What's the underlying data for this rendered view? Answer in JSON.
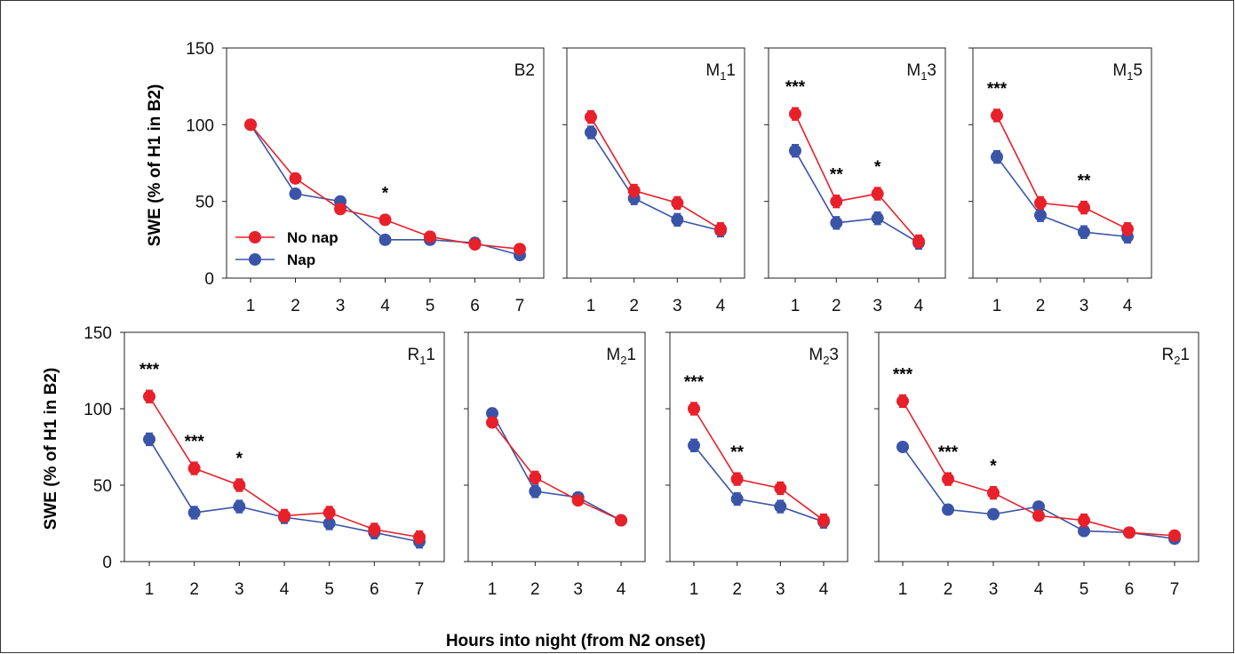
{
  "figure": {
    "ylabel": "SWE (% of H1 in B2)",
    "xlabel": "Hours into night (from N2 onset)",
    "legend": [
      {
        "name": "No nap",
        "color": "#e8202a"
      },
      {
        "name": "Nap",
        "color": "#3a55a8"
      }
    ],
    "colors": {
      "no_nap": "#e8202a",
      "nap": "#3a55a8"
    }
  },
  "chart_data": [
    {
      "type": "line",
      "label": "B2",
      "label_sub": "",
      "ylim": [
        0,
        150
      ],
      "yticks": [
        0,
        50,
        100,
        150
      ],
      "x": [
        1,
        2,
        3,
        4,
        5,
        6,
        7
      ],
      "series": [
        {
          "name": "No nap",
          "values": [
            100,
            65,
            45,
            38,
            27,
            22,
            19
          ],
          "err": [
            3,
            3,
            3,
            3,
            3,
            3,
            3
          ]
        },
        {
          "name": "Nap",
          "values": [
            100,
            55,
            50,
            25,
            25,
            23,
            15
          ],
          "err": [
            3,
            3,
            3,
            3,
            3,
            3,
            3
          ]
        }
      ],
      "annotations": [
        {
          "x": 4,
          "text": "*"
        }
      ],
      "legend": "left-bottom"
    },
    {
      "type": "line",
      "label": "M",
      "label_sub": "1",
      "label_tail": "1",
      "ylim": [
        0,
        150
      ],
      "x": [
        1,
        2,
        3,
        4
      ],
      "series": [
        {
          "name": "No nap",
          "values": [
            105,
            57,
            49,
            32
          ],
          "err": [
            4,
            4,
            4,
            4
          ]
        },
        {
          "name": "Nap",
          "values": [
            95,
            52,
            38,
            31
          ],
          "err": [
            4,
            4,
            4,
            4
          ]
        }
      ],
      "annotations": []
    },
    {
      "type": "line",
      "label": "M",
      "label_sub": "1",
      "label_tail": "3",
      "ylim": [
        0,
        150
      ],
      "x": [
        1,
        2,
        3,
        4
      ],
      "series": [
        {
          "name": "No nap",
          "values": [
            107,
            50,
            55,
            24
          ],
          "err": [
            4,
            4,
            4,
            4
          ]
        },
        {
          "name": "Nap",
          "values": [
            83,
            36,
            39,
            23
          ],
          "err": [
            4,
            4,
            4,
            4
          ]
        }
      ],
      "annotations": [
        {
          "x": 1,
          "text": "***"
        },
        {
          "x": 2,
          "text": "**"
        },
        {
          "x": 3,
          "text": "*"
        }
      ]
    },
    {
      "type": "line",
      "label": "M",
      "label_sub": "1",
      "label_tail": "5",
      "ylim": [
        0,
        150
      ],
      "x": [
        1,
        2,
        3,
        4
      ],
      "series": [
        {
          "name": "No nap",
          "values": [
            106,
            49,
            46,
            32
          ],
          "err": [
            4,
            4,
            4,
            4
          ]
        },
        {
          "name": "Nap",
          "values": [
            79,
            41,
            30,
            27
          ],
          "err": [
            4,
            4,
            4,
            4
          ]
        }
      ],
      "annotations": [
        {
          "x": 1,
          "text": "***"
        },
        {
          "x": 3,
          "text": "**"
        }
      ]
    },
    {
      "type": "line",
      "label": "R",
      "label_sub": "1",
      "label_tail": "1",
      "ylim": [
        0,
        150
      ],
      "yticks": [
        0,
        50,
        100,
        150
      ],
      "x": [
        1,
        2,
        3,
        4,
        5,
        6,
        7
      ],
      "series": [
        {
          "name": "No nap",
          "values": [
            108,
            61,
            50,
            30,
            32,
            21,
            16
          ],
          "err": [
            4,
            4,
            4,
            4,
            4,
            4,
            4
          ]
        },
        {
          "name": "Nap",
          "values": [
            80,
            32,
            36,
            29,
            25,
            19,
            13
          ],
          "err": [
            4,
            4,
            4,
            4,
            4,
            4,
            4
          ]
        }
      ],
      "annotations": [
        {
          "x": 1,
          "text": "***"
        },
        {
          "x": 2,
          "text": "***"
        },
        {
          "x": 3,
          "text": "*"
        }
      ]
    },
    {
      "type": "line",
      "label": "M",
      "label_sub": "2",
      "label_tail": "1",
      "ylim": [
        0,
        150
      ],
      "x": [
        1,
        2,
        3,
        4
      ],
      "series": [
        {
          "name": "No nap",
          "values": [
            91,
            55,
            40,
            27
          ],
          "err": [
            3,
            4,
            3,
            3
          ]
        },
        {
          "name": "Nap",
          "values": [
            97,
            46,
            42,
            27
          ],
          "err": [
            3,
            4,
            3,
            3
          ]
        }
      ],
      "annotations": []
    },
    {
      "type": "line",
      "label": "M",
      "label_sub": "2",
      "label_tail": "3",
      "ylim": [
        0,
        150
      ],
      "x": [
        1,
        2,
        3,
        4
      ],
      "series": [
        {
          "name": "No nap",
          "values": [
            100,
            54,
            48,
            27
          ],
          "err": [
            4,
            4,
            4,
            4
          ]
        },
        {
          "name": "Nap",
          "values": [
            76,
            41,
            36,
            26
          ],
          "err": [
            4,
            4,
            4,
            4
          ]
        }
      ],
      "annotations": [
        {
          "x": 1,
          "text": "***"
        },
        {
          "x": 2,
          "text": "**"
        }
      ]
    },
    {
      "type": "line",
      "label": "R",
      "label_sub": "2",
      "label_tail": "1",
      "ylim": [
        0,
        150
      ],
      "x": [
        1,
        2,
        3,
        4,
        5,
        6,
        7
      ],
      "series": [
        {
          "name": "No nap",
          "values": [
            105,
            54,
            45,
            30,
            27,
            19,
            17
          ],
          "err": [
            4,
            4,
            4,
            3,
            4,
            3,
            3
          ]
        },
        {
          "name": "Nap",
          "values": [
            75,
            34,
            31,
            36,
            20,
            19,
            15
          ],
          "err": [
            3,
            3,
            3,
            3,
            3,
            3,
            3
          ]
        }
      ],
      "annotations": [
        {
          "x": 1,
          "text": "***"
        },
        {
          "x": 2,
          "text": "***"
        },
        {
          "x": 3,
          "text": "*"
        }
      ]
    }
  ]
}
